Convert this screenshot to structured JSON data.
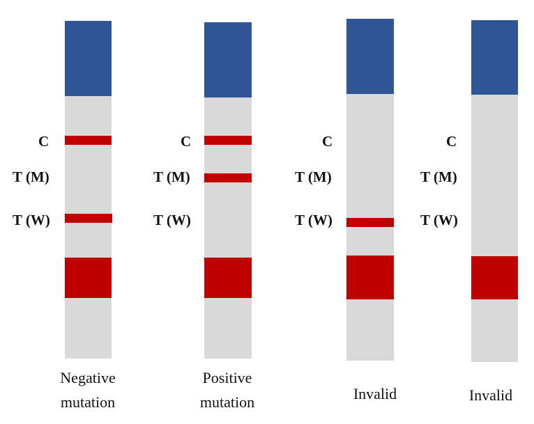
{
  "strips": [
    {
      "labels": [
        "C",
        "T (M)",
        "T (W)"
      ],
      "caption": [
        "Negative",
        "mutation"
      ]
    },
    {
      "labels": [
        "C",
        "T (M)",
        "T (W)"
      ],
      "caption": [
        "Positive",
        "mutation"
      ]
    },
    {
      "labels": [
        "C",
        "T (M)",
        "T (W)"
      ],
      "caption": [
        "Invalid"
      ]
    },
    {
      "labels": [
        "C",
        "T (M)",
        "T (W)"
      ],
      "caption": [
        "Invalid"
      ]
    }
  ]
}
